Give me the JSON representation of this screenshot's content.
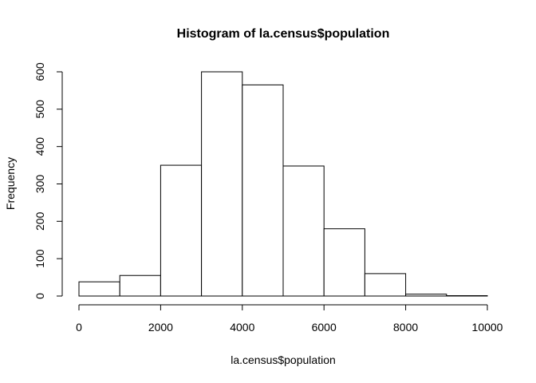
{
  "chart_data": {
    "type": "bar",
    "title": "Histogram of la.census$population",
    "xlabel": "la.census$population",
    "ylabel": "Frequency",
    "bins": [
      {
        "from": 0,
        "to": 1000,
        "count": 38
      },
      {
        "from": 1000,
        "to": 2000,
        "count": 55
      },
      {
        "from": 2000,
        "to": 3000,
        "count": 350
      },
      {
        "from": 3000,
        "to": 4000,
        "count": 600
      },
      {
        "from": 4000,
        "to": 5000,
        "count": 565
      },
      {
        "from": 5000,
        "to": 6000,
        "count": 348
      },
      {
        "from": 6000,
        "to": 7000,
        "count": 180
      },
      {
        "from": 7000,
        "to": 8000,
        "count": 60
      },
      {
        "from": 8000,
        "to": 9000,
        "count": 5
      },
      {
        "from": 9000,
        "to": 10000,
        "count": 1
      }
    ],
    "xlim": [
      0,
      10000
    ],
    "ylim": [
      0,
      600
    ],
    "x_ticks": [
      "0",
      "2000",
      "4000",
      "6000",
      "8000",
      "10000"
    ],
    "y_ticks": [
      "0",
      "100",
      "200",
      "300",
      "400",
      "500",
      "600"
    ],
    "grid": false,
    "bar_fill": "#ffffff",
    "bar_stroke": "#000000"
  }
}
